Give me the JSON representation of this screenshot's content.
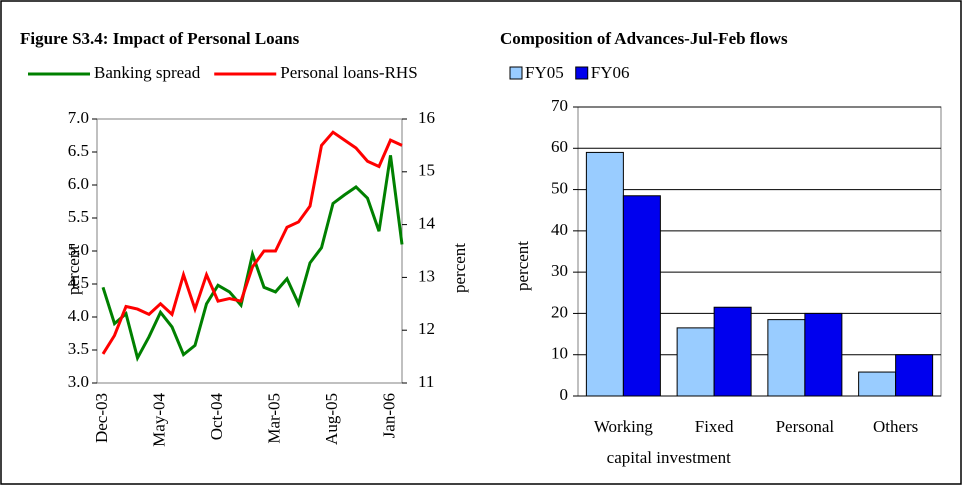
{
  "chart_data": [
    {
      "type": "line",
      "title": "Figure S3.4: Impact of Personal Loans",
      "ylabel": "percent",
      "y2label": "percent",
      "categories": [
        "Dec-03",
        null,
        null,
        null,
        null,
        "May-04",
        null,
        null,
        null,
        null,
        "Oct-04",
        null,
        null,
        null,
        null,
        "Mar-05",
        null,
        null,
        null,
        null,
        "Aug-05",
        null,
        null,
        null,
        null,
        "Jan-06",
        null
      ],
      "series": [
        {
          "name": "Banking spread",
          "color": "#008000",
          "values": [
            4.45,
            3.9,
            4.05,
            3.38,
            3.7,
            4.07,
            3.85,
            3.43,
            3.57,
            4.2,
            4.48,
            4.38,
            4.18,
            4.95,
            4.45,
            4.38,
            4.58,
            4.2,
            4.82,
            5.05,
            5.72,
            5.85,
            5.97,
            5.8,
            5.3,
            6.45,
            5.1
          ]
        },
        {
          "name": "Personal loans-RHS",
          "color": "#ff0000",
          "axis": "y2",
          "values": [
            11.55,
            11.9,
            12.45,
            12.4,
            12.3,
            12.5,
            12.3,
            13.05,
            12.4,
            13.05,
            12.55,
            12.6,
            12.55,
            13.2,
            13.5,
            13.5,
            13.95,
            14.05,
            14.35,
            15.5,
            15.75,
            15.6,
            15.45,
            15.2,
            15.1,
            15.6,
            15.5
          ]
        }
      ],
      "ylim": [
        3,
        7
      ],
      "yticks": [
        {
          "value": 3,
          "label": "3.0"
        },
        {
          "value": 3.5,
          "label": "3.5"
        },
        {
          "value": 4,
          "label": "4.0"
        },
        {
          "value": 4.5,
          "label": "4.5"
        },
        {
          "value": 5,
          "label": "5.0"
        },
        {
          "value": 5.5,
          "label": "5.5"
        },
        {
          "value": 6,
          "label": "6.0"
        },
        {
          "value": 6.5,
          "label": "6.5"
        },
        {
          "value": 7,
          "label": "7.0"
        }
      ],
      "y2lim": [
        11,
        16
      ],
      "y2ticks": [
        11,
        12,
        13,
        14,
        15,
        16
      ],
      "grid": false,
      "legend": "top"
    },
    {
      "type": "bar",
      "title": "Composition of Advances-Jul-Feb flows",
      "ylabel": "percent",
      "categories": [
        "Working",
        "Fixed",
        "Personal",
        "Others"
      ],
      "x_label_second_line": "capital investment",
      "series": [
        {
          "name": "FY05",
          "color": "#99ccff",
          "values": [
            59,
            16.5,
            18.5,
            5.8
          ]
        },
        {
          "name": "FY06",
          "color": "#0000ee",
          "values": [
            48.5,
            21.5,
            20,
            10
          ]
        }
      ],
      "ylim": [
        0,
        70
      ],
      "yticks": [
        0,
        10,
        20,
        30,
        40,
        50,
        60,
        70
      ],
      "grid": true,
      "legend": "top"
    }
  ]
}
